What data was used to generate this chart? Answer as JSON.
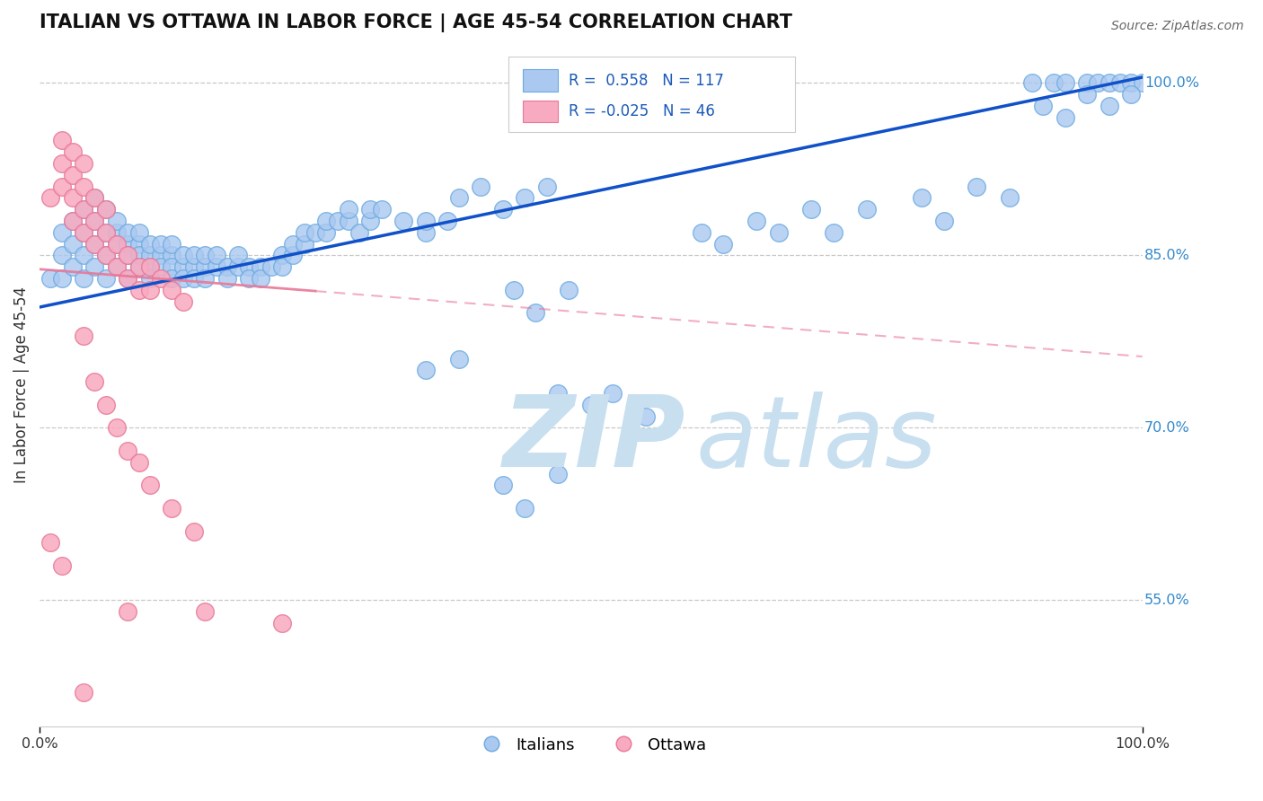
{
  "title": "ITALIAN VS OTTAWA IN LABOR FORCE | AGE 45-54 CORRELATION CHART",
  "source_text": "Source: ZipAtlas.com",
  "ylabel": "In Labor Force | Age 45-54",
  "xlim": [
    0.0,
    1.0
  ],
  "ylim": [
    0.44,
    1.035
  ],
  "yticks": [
    0.55,
    0.7,
    0.85,
    1.0
  ],
  "ytick_labels": [
    "55.0%",
    "70.0%",
    "85.0%",
    "100.0%"
  ],
  "xtick_labels": [
    "0.0%",
    "100.0%"
  ],
  "legend_r_italian": "0.558",
  "legend_n_italian": "117",
  "legend_r_ottawa": "-0.025",
  "legend_n_ottawa": "46",
  "italian_color": "#aac8f0",
  "italian_edge": "#6aaae0",
  "ottawa_color": "#f8aac0",
  "ottawa_edge": "#e87898",
  "italian_line_color": "#1050c8",
  "ottawa_line_color": "#e87898",
  "watermark_color": "#c8dff0",
  "background": "#ffffff",
  "it_line_y0": 0.805,
  "it_line_y1": 1.005,
  "ot_line_y0": 0.838,
  "ot_line_y1": 0.762
}
